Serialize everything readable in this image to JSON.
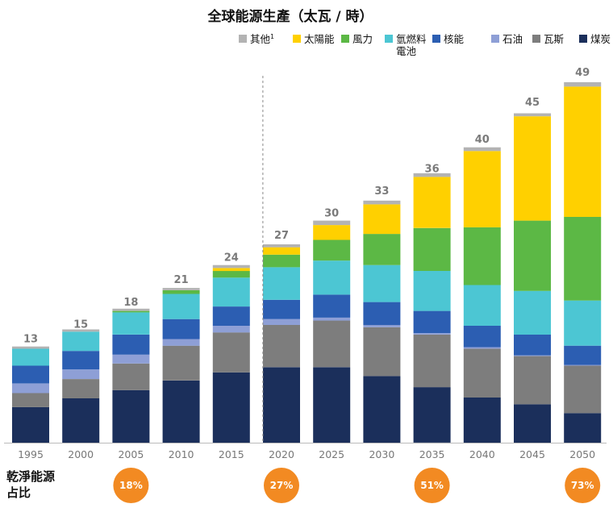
{
  "chart_data": {
    "type": "bar",
    "stacked": true,
    "title": "全球能源生產（太瓦 / 時）",
    "categories": [
      "1995",
      "2000",
      "2005",
      "2010",
      "2015",
      "2020",
      "2025",
      "2030",
      "2035",
      "2040",
      "2045",
      "2050"
    ],
    "totals": [
      13,
      15,
      18,
      21,
      24,
      27,
      30,
      33,
      36,
      40,
      45,
      49
    ],
    "series": [
      {
        "name": "煤炭",
        "color": "#1b2f5b",
        "values": [
          4.8,
          6.0,
          7.1,
          8.4,
          9.5,
          10.2,
          10.2,
          9.0,
          7.5,
          6.1,
          5.2,
          4.0
        ]
      },
      {
        "name": "瓦斯",
        "color": "#7d7d7d",
        "values": [
          1.9,
          2.6,
          3.6,
          4.7,
          5.4,
          5.7,
          6.3,
          6.6,
          7.1,
          6.6,
          6.5,
          6.4
        ]
      },
      {
        "name": "石油",
        "color": "#8e9fd6",
        "values": [
          1.3,
          1.3,
          1.2,
          0.9,
          0.9,
          0.8,
          0.4,
          0.3,
          0.2,
          0.2,
          0.1,
          0.1
        ]
      },
      {
        "name": "核能",
        "color": "#2c5eb2",
        "values": [
          2.4,
          2.5,
          2.7,
          2.7,
          2.6,
          2.6,
          3.1,
          3.1,
          3.0,
          2.9,
          2.8,
          2.6
        ]
      },
      {
        "name": "氫燃料電池",
        "color": "#4cc6d3",
        "values": [
          2.3,
          2.6,
          3.0,
          3.4,
          3.9,
          4.4,
          4.6,
          5.0,
          5.4,
          5.5,
          5.9,
          6.1
        ]
      },
      {
        "name": "風力",
        "color": "#5cb845",
        "values": [
          0,
          0,
          0.2,
          0.5,
          0.9,
          1.7,
          2.8,
          4.2,
          5.8,
          7.8,
          9.5,
          11.3
        ]
      },
      {
        "name": "太陽能",
        "color": "#ffd000",
        "values": [
          0,
          0,
          0,
          0,
          0.4,
          1.0,
          2.0,
          4.0,
          6.9,
          10.3,
          14.1,
          17.6
        ]
      },
      {
        "name": "其他",
        "color": "#b3b3b3",
        "values": [
          0.3,
          0.3,
          0.3,
          0.3,
          0.4,
          0.4,
          0.6,
          0.5,
          0.5,
          0.5,
          0.4,
          0.6
        ]
      }
    ],
    "ylim": [
      0,
      50
    ],
    "divider_after": "2015",
    "xlabel": "",
    "ylabel": ""
  },
  "legend": [
    {
      "label": "其他",
      "sup": "1",
      "color": "#b3b3b3"
    },
    {
      "label": "太陽能",
      "color": "#ffd000"
    },
    {
      "label": "風力",
      "color": "#5cb845"
    },
    {
      "label": "氫燃料",
      "label2": "電池",
      "color": "#4cc6d3"
    },
    {
      "label": "核能",
      "color": "#2c5eb2"
    },
    {
      "label": "石油",
      "color": "#8e9fd6"
    },
    {
      "label": "瓦斯",
      "color": "#7d7d7d"
    },
    {
      "label": "煤炭",
      "color": "#1b2f5b"
    }
  ],
  "clean_share": {
    "label_line1": "乾淨能源",
    "label_line2": "占比",
    "color": "#f28a22",
    "items": [
      {
        "year": "2005",
        "value": "18%"
      },
      {
        "year": "2020",
        "value": "27%"
      },
      {
        "year": "2035",
        "value": "51%"
      },
      {
        "year": "2050",
        "value": "73%"
      }
    ]
  }
}
